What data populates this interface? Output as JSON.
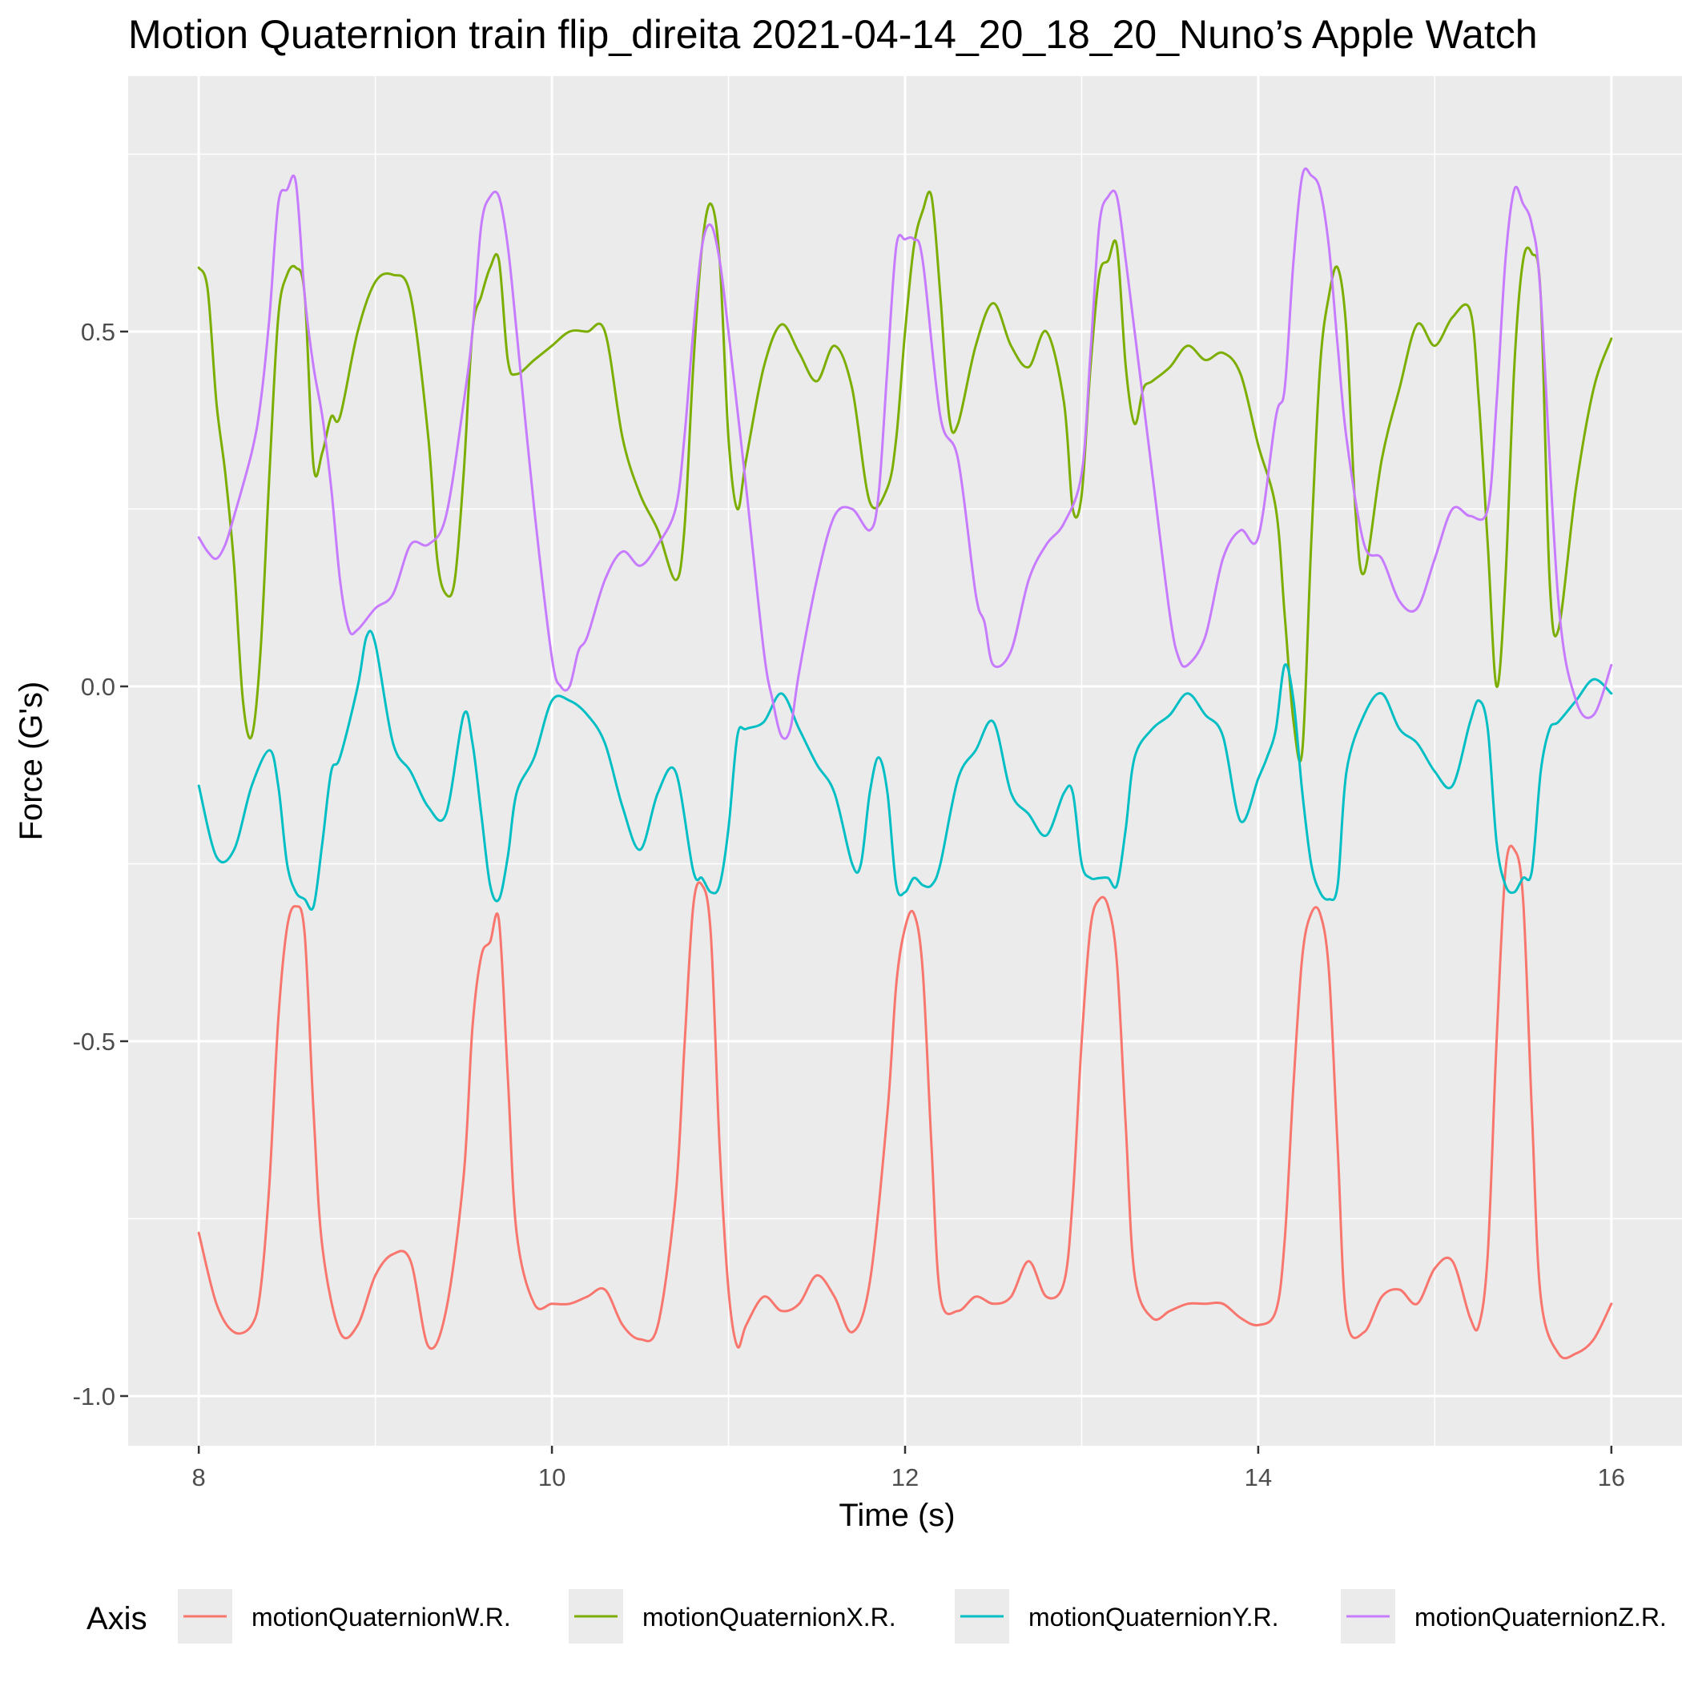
{
  "chart_data": {
    "type": "line",
    "title": "Motion Quaternion train flip_direita 2021-04-14_20_18_20_Nuno’s Apple Watch",
    "xlabel": "Time (s)",
    "ylabel": "Force (G's)",
    "xlim": [
      7.6,
      16.4
    ],
    "ylim": [
      -1.07,
      0.86
    ],
    "x_ticks": [
      8,
      10,
      12,
      14,
      16
    ],
    "x_tick_labels": [
      "8",
      "10",
      "12",
      "14",
      "16"
    ],
    "y_ticks": [
      -1.0,
      -0.5,
      0.0,
      0.5
    ],
    "y_tick_labels": [
      "-1.0",
      "-0.5",
      "0.0",
      "0.5"
    ],
    "grid": true,
    "legend": {
      "title": "Axis",
      "position": "bottom"
    },
    "colors": {
      "panel_background": "#ebebeb",
      "grid": "#ffffff"
    },
    "series": [
      {
        "name": "motionQuaternionW.R.",
        "color": "#F8766D",
        "x": [
          8.0,
          8.1,
          8.2,
          8.3,
          8.35,
          8.4,
          8.45,
          8.5,
          8.55,
          8.6,
          8.65,
          8.7,
          8.8,
          8.9,
          9.0,
          9.1,
          9.2,
          9.3,
          9.4,
          9.5,
          9.55,
          9.6,
          9.65,
          9.7,
          9.75,
          9.8,
          9.9,
          10.0,
          10.1,
          10.2,
          10.3,
          10.4,
          10.5,
          10.6,
          10.7,
          10.75,
          10.8,
          10.85,
          10.9,
          10.95,
          11.0,
          11.05,
          11.1,
          11.2,
          11.3,
          11.4,
          11.5,
          11.6,
          11.7,
          11.8,
          11.9,
          11.95,
          12.0,
          12.05,
          12.1,
          12.15,
          12.2,
          12.3,
          12.4,
          12.5,
          12.6,
          12.7,
          12.8,
          12.9,
          12.95,
          13.0,
          13.05,
          13.1,
          13.15,
          13.2,
          13.25,
          13.3,
          13.4,
          13.5,
          13.6,
          13.7,
          13.8,
          13.9,
          14.0,
          14.1,
          14.15,
          14.2,
          14.25,
          14.3,
          14.35,
          14.4,
          14.45,
          14.5,
          14.6,
          14.7,
          14.8,
          14.9,
          15.0,
          15.1,
          15.2,
          15.25,
          15.3,
          15.35,
          15.4,
          15.45,
          15.5,
          15.55,
          15.6,
          15.7,
          15.8,
          15.9,
          16.0
        ],
        "values": [
          -0.77,
          -0.87,
          -0.91,
          -0.9,
          -0.85,
          -0.7,
          -0.47,
          -0.34,
          -0.31,
          -0.35,
          -0.6,
          -0.79,
          -0.91,
          -0.9,
          -0.83,
          -0.8,
          -0.81,
          -0.93,
          -0.88,
          -0.69,
          -0.48,
          -0.38,
          -0.36,
          -0.33,
          -0.55,
          -0.77,
          -0.87,
          -0.87,
          -0.87,
          -0.86,
          -0.85,
          -0.9,
          -0.92,
          -0.9,
          -0.72,
          -0.51,
          -0.31,
          -0.28,
          -0.35,
          -0.65,
          -0.85,
          -0.93,
          -0.9,
          -0.86,
          -0.88,
          -0.87,
          -0.83,
          -0.86,
          -0.91,
          -0.84,
          -0.6,
          -0.42,
          -0.34,
          -0.32,
          -0.4,
          -0.65,
          -0.86,
          -0.88,
          -0.86,
          -0.87,
          -0.86,
          -0.81,
          -0.86,
          -0.84,
          -0.72,
          -0.5,
          -0.34,
          -0.3,
          -0.31,
          -0.39,
          -0.62,
          -0.83,
          -0.89,
          -0.88,
          -0.87,
          -0.87,
          -0.87,
          -0.89,
          -0.9,
          -0.88,
          -0.78,
          -0.56,
          -0.38,
          -0.32,
          -0.32,
          -0.4,
          -0.65,
          -0.89,
          -0.91,
          -0.86,
          -0.85,
          -0.87,
          -0.82,
          -0.81,
          -0.89,
          -0.9,
          -0.8,
          -0.5,
          -0.26,
          -0.23,
          -0.3,
          -0.6,
          -0.86,
          -0.94,
          -0.94,
          -0.92,
          -0.87
        ]
      },
      {
        "name": "motionQuaternionX.R.",
        "color": "#7CAE00",
        "x": [
          8.0,
          8.05,
          8.1,
          8.15,
          8.2,
          8.25,
          8.3,
          8.35,
          8.4,
          8.45,
          8.5,
          8.55,
          8.6,
          8.65,
          8.7,
          8.75,
          8.8,
          8.9,
          9.0,
          9.1,
          9.2,
          9.3,
          9.35,
          9.4,
          9.45,
          9.5,
          9.55,
          9.6,
          9.65,
          9.7,
          9.75,
          9.8,
          9.9,
          10.0,
          10.1,
          10.2,
          10.3,
          10.4,
          10.5,
          10.6,
          10.7,
          10.75,
          10.8,
          10.85,
          10.9,
          10.95,
          11.0,
          11.05,
          11.1,
          11.2,
          11.3,
          11.4,
          11.5,
          11.6,
          11.7,
          11.8,
          11.9,
          11.95,
          12.0,
          12.05,
          12.1,
          12.15,
          12.2,
          12.25,
          12.3,
          12.4,
          12.5,
          12.6,
          12.7,
          12.8,
          12.9,
          12.95,
          13.0,
          13.05,
          13.1,
          13.15,
          13.2,
          13.25,
          13.3,
          13.35,
          13.4,
          13.5,
          13.6,
          13.7,
          13.8,
          13.9,
          14.0,
          14.1,
          14.15,
          14.2,
          14.25,
          14.3,
          14.35,
          14.4,
          14.45,
          14.5,
          14.55,
          14.6,
          14.7,
          14.8,
          14.9,
          15.0,
          15.1,
          15.2,
          15.25,
          15.3,
          15.35,
          15.4,
          15.45,
          15.5,
          15.55,
          15.6,
          15.65,
          15.7,
          15.8,
          15.9,
          16.0
        ],
        "values": [
          0.59,
          0.56,
          0.4,
          0.3,
          0.17,
          -0.02,
          -0.07,
          0.05,
          0.3,
          0.52,
          0.58,
          0.59,
          0.55,
          0.31,
          0.33,
          0.38,
          0.38,
          0.5,
          0.57,
          0.58,
          0.55,
          0.35,
          0.18,
          0.13,
          0.15,
          0.3,
          0.5,
          0.55,
          0.59,
          0.6,
          0.46,
          0.44,
          0.46,
          0.48,
          0.5,
          0.5,
          0.5,
          0.35,
          0.27,
          0.22,
          0.15,
          0.22,
          0.45,
          0.62,
          0.68,
          0.6,
          0.35,
          0.25,
          0.32,
          0.45,
          0.51,
          0.47,
          0.43,
          0.48,
          0.42,
          0.26,
          0.28,
          0.35,
          0.5,
          0.62,
          0.67,
          0.69,
          0.55,
          0.38,
          0.37,
          0.48,
          0.54,
          0.48,
          0.45,
          0.5,
          0.4,
          0.25,
          0.27,
          0.45,
          0.58,
          0.6,
          0.62,
          0.45,
          0.37,
          0.42,
          0.43,
          0.45,
          0.48,
          0.46,
          0.47,
          0.44,
          0.34,
          0.25,
          0.1,
          -0.05,
          -0.09,
          0.2,
          0.45,
          0.55,
          0.59,
          0.5,
          0.25,
          0.16,
          0.32,
          0.42,
          0.51,
          0.48,
          0.52,
          0.53,
          0.4,
          0.2,
          0.0,
          0.15,
          0.45,
          0.6,
          0.61,
          0.55,
          0.15,
          0.08,
          0.28,
          0.42,
          0.49
        ]
      },
      {
        "name": "motionQuaternionY.R.",
        "color": "#00BFC4",
        "x": [
          8.0,
          8.1,
          8.2,
          8.3,
          8.4,
          8.45,
          8.5,
          8.55,
          8.6,
          8.65,
          8.7,
          8.75,
          8.8,
          8.9,
          8.95,
          9.0,
          9.1,
          9.2,
          9.3,
          9.4,
          9.5,
          9.55,
          9.6,
          9.65,
          9.7,
          9.75,
          9.8,
          9.9,
          10.0,
          10.1,
          10.2,
          10.3,
          10.4,
          10.5,
          10.6,
          10.7,
          10.8,
          10.85,
          10.9,
          10.95,
          11.0,
          11.05,
          11.1,
          11.2,
          11.3,
          11.4,
          11.5,
          11.6,
          11.7,
          11.75,
          11.8,
          11.85,
          11.9,
          11.95,
          12.0,
          12.05,
          12.1,
          12.15,
          12.2,
          12.3,
          12.4,
          12.5,
          12.6,
          12.7,
          12.8,
          12.9,
          12.95,
          13.0,
          13.05,
          13.1,
          13.15,
          13.2,
          13.25,
          13.3,
          13.4,
          13.5,
          13.6,
          13.7,
          13.8,
          13.9,
          14.0,
          14.05,
          14.1,
          14.15,
          14.2,
          14.25,
          14.3,
          14.35,
          14.4,
          14.45,
          14.5,
          14.6,
          14.7,
          14.8,
          14.9,
          15.0,
          15.1,
          15.2,
          15.25,
          15.3,
          15.35,
          15.4,
          15.45,
          15.5,
          15.55,
          15.6,
          15.65,
          15.7,
          15.8,
          15.9,
          16.0
        ],
        "values": [
          -0.14,
          -0.24,
          -0.23,
          -0.14,
          -0.09,
          -0.14,
          -0.25,
          -0.29,
          -0.3,
          -0.31,
          -0.22,
          -0.12,
          -0.1,
          0.0,
          0.07,
          0.06,
          -0.08,
          -0.12,
          -0.17,
          -0.18,
          -0.04,
          -0.08,
          -0.18,
          -0.28,
          -0.3,
          -0.24,
          -0.15,
          -0.1,
          -0.02,
          -0.02,
          -0.04,
          -0.08,
          -0.17,
          -0.23,
          -0.15,
          -0.12,
          -0.26,
          -0.27,
          -0.29,
          -0.28,
          -0.2,
          -0.07,
          -0.06,
          -0.05,
          -0.01,
          -0.06,
          -0.11,
          -0.15,
          -0.25,
          -0.25,
          -0.15,
          -0.1,
          -0.15,
          -0.28,
          -0.29,
          -0.27,
          -0.28,
          -0.28,
          -0.25,
          -0.13,
          -0.09,
          -0.05,
          -0.15,
          -0.18,
          -0.21,
          -0.15,
          -0.15,
          -0.25,
          -0.27,
          -0.27,
          -0.27,
          -0.28,
          -0.2,
          -0.1,
          -0.06,
          -0.04,
          -0.01,
          -0.04,
          -0.07,
          -0.19,
          -0.13,
          -0.1,
          -0.06,
          0.03,
          -0.02,
          -0.15,
          -0.25,
          -0.29,
          -0.3,
          -0.28,
          -0.12,
          -0.04,
          -0.01,
          -0.06,
          -0.08,
          -0.12,
          -0.14,
          -0.05,
          -0.02,
          -0.06,
          -0.22,
          -0.28,
          -0.29,
          -0.27,
          -0.26,
          -0.12,
          -0.06,
          -0.05,
          -0.02,
          0.01,
          -0.01
        ]
      },
      {
        "name": "motionQuaternionZ.R.",
        "color": "#C77CFF",
        "x": [
          8.0,
          8.05,
          8.1,
          8.15,
          8.2,
          8.3,
          8.35,
          8.4,
          8.45,
          8.5,
          8.55,
          8.6,
          8.65,
          8.7,
          8.75,
          8.8,
          8.85,
          8.9,
          9.0,
          9.1,
          9.2,
          9.3,
          9.4,
          9.5,
          9.55,
          9.6,
          9.65,
          9.7,
          9.75,
          9.8,
          9.9,
          10.0,
          10.05,
          10.1,
          10.15,
          10.2,
          10.3,
          10.4,
          10.5,
          10.6,
          10.7,
          10.75,
          10.8,
          10.85,
          10.9,
          10.95,
          11.0,
          11.1,
          11.2,
          11.25,
          11.3,
          11.35,
          11.4,
          11.5,
          11.6,
          11.7,
          11.8,
          11.85,
          11.9,
          11.95,
          12.0,
          12.05,
          12.1,
          12.2,
          12.3,
          12.4,
          12.45,
          12.5,
          12.6,
          12.7,
          12.8,
          12.9,
          13.0,
          13.05,
          13.1,
          13.15,
          13.2,
          13.25,
          13.3,
          13.4,
          13.5,
          13.55,
          13.6,
          13.7,
          13.8,
          13.9,
          14.0,
          14.1,
          14.15,
          14.2,
          14.25,
          14.3,
          14.35,
          14.4,
          14.45,
          14.5,
          14.6,
          14.7,
          14.8,
          14.9,
          15.0,
          15.1,
          15.2,
          15.3,
          15.35,
          15.4,
          15.45,
          15.5,
          15.55,
          15.6,
          15.7,
          15.8,
          15.9,
          16.0
        ],
        "values": [
          0.21,
          0.19,
          0.18,
          0.2,
          0.24,
          0.33,
          0.4,
          0.52,
          0.68,
          0.7,
          0.71,
          0.55,
          0.45,
          0.38,
          0.28,
          0.15,
          0.08,
          0.08,
          0.11,
          0.13,
          0.2,
          0.2,
          0.24,
          0.4,
          0.5,
          0.65,
          0.69,
          0.69,
          0.62,
          0.5,
          0.25,
          0.04,
          0.0,
          0.0,
          0.05,
          0.07,
          0.15,
          0.19,
          0.17,
          0.2,
          0.25,
          0.35,
          0.5,
          0.62,
          0.65,
          0.6,
          0.5,
          0.28,
          0.05,
          -0.02,
          -0.07,
          -0.06,
          0.02,
          0.15,
          0.24,
          0.25,
          0.22,
          0.27,
          0.45,
          0.62,
          0.63,
          0.63,
          0.6,
          0.38,
          0.32,
          0.13,
          0.09,
          0.03,
          0.05,
          0.15,
          0.2,
          0.23,
          0.3,
          0.47,
          0.65,
          0.69,
          0.69,
          0.6,
          0.5,
          0.3,
          0.1,
          0.04,
          0.03,
          0.07,
          0.18,
          0.22,
          0.21,
          0.38,
          0.42,
          0.6,
          0.72,
          0.72,
          0.7,
          0.62,
          0.48,
          0.35,
          0.2,
          0.18,
          0.12,
          0.11,
          0.18,
          0.25,
          0.24,
          0.25,
          0.4,
          0.6,
          0.7,
          0.68,
          0.65,
          0.55,
          0.12,
          -0.02,
          -0.04,
          0.03
        ]
      }
    ]
  }
}
